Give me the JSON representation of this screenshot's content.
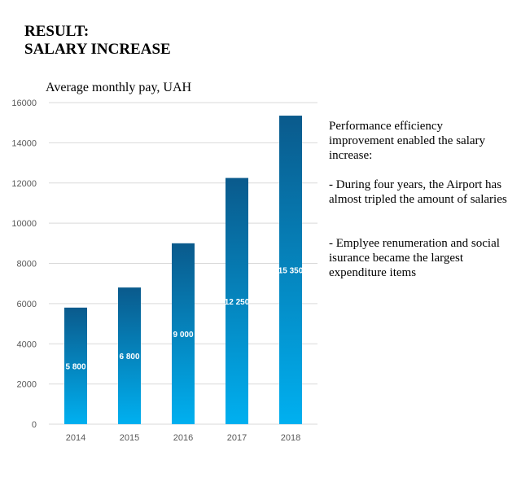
{
  "heading": {
    "line1": "RESULT:",
    "line2": "SALARY INCREASE"
  },
  "colors": {
    "bar_top": "#0a5a8c",
    "bar_bottom": "#00b0f0",
    "grid": "#d9d9d9",
    "axis_text": "#595959"
  },
  "notes": {
    "intro": "Performance efficiency improvement enabled the salary increase:",
    "point1": "-   During four years, the Airport has almost tripled the amount of salaries",
    "point2": "-   Emplyee renumeration and social isurance became the largest expenditure items"
  },
  "chart_data": {
    "type": "bar",
    "title": "Average monthly pay, UAH",
    "categories": [
      "2014",
      "2015",
      "2016",
      "2017",
      "2018"
    ],
    "values": [
      5800,
      6800,
      9000,
      12250,
      15350
    ],
    "data_labels": [
      "5 800",
      "6 800",
      "9 000",
      "12 250",
      "15 350"
    ],
    "ylim": [
      0,
      16000
    ],
    "yticks": [
      0,
      2000,
      4000,
      6000,
      8000,
      10000,
      12000,
      14000,
      16000
    ],
    "grid": true,
    "legend": "none"
  }
}
